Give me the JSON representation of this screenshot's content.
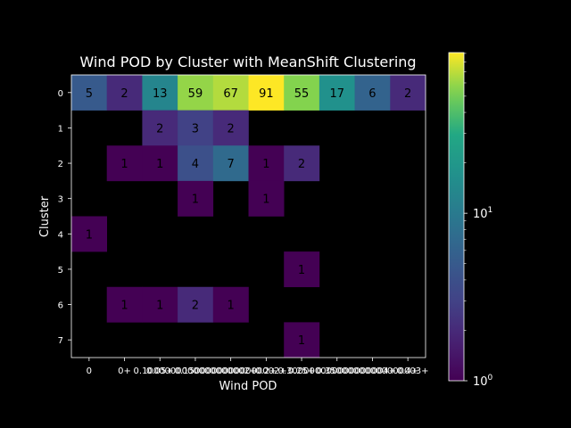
{
  "chart_data": {
    "type": "heatmap",
    "title": "Wind POD by Cluster with MeanShift Clustering",
    "xlabel": "Wind POD",
    "ylabel": "Cluster",
    "x_categories": [
      "0",
      "0+",
      "0.05+",
      "0.1+",
      "0.15+",
      "0.2+",
      "0.25+",
      "0.3+",
      "0.35+",
      "0.4+"
    ],
    "x_tick_labels": [
      "0",
      "0+",
      "0.05+",
      "0.1000000000000000002+",
      "0.15000000000000002+",
      "0.2+",
      "0.25+",
      "0.300000000000000004+",
      "0.35000000000000003+",
      "0.4+"
    ],
    "y_categories": [
      "0",
      "1",
      "2",
      "3",
      "4",
      "5",
      "6",
      "7"
    ],
    "values": [
      [
        5,
        2,
        13,
        59,
        67,
        91,
        55,
        17,
        6,
        2
      ],
      [
        null,
        null,
        2,
        3,
        2,
        null,
        null,
        null,
        null,
        null
      ],
      [
        null,
        1,
        1,
        4,
        7,
        1,
        2,
        null,
        null,
        null
      ],
      [
        null,
        null,
        null,
        1,
        null,
        1,
        null,
        null,
        null,
        null
      ],
      [
        1,
        null,
        null,
        null,
        null,
        null,
        null,
        null,
        null,
        null
      ],
      [
        null,
        null,
        null,
        null,
        null,
        null,
        1,
        null,
        null,
        null
      ],
      [
        null,
        1,
        1,
        2,
        1,
        null,
        null,
        null,
        null,
        null
      ],
      [
        null,
        null,
        null,
        null,
        null,
        null,
        1,
        null,
        null,
        null
      ]
    ],
    "color_scale": "log",
    "colormap": "viridis",
    "vmin": 1,
    "vmax": 91,
    "colorbar_ticks": [
      {
        "base": "10",
        "exp": "0",
        "value": 1
      },
      {
        "base": "10",
        "exp": "1",
        "value": 10
      }
    ],
    "colors": {
      "background": "#000000",
      "text": "#ffffff",
      "cell_text": "#000000"
    }
  }
}
